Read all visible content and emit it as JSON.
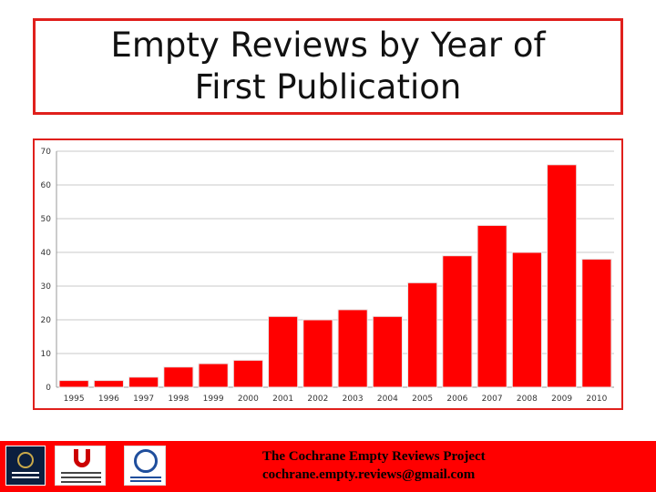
{
  "title": "Empty Reviews by Year of First Publication",
  "footer": {
    "project": "The Cochrane Empty Reviews Project",
    "email": "cochrane.empty.reviews@gmail.com"
  },
  "logos": [
    "oxford-logo",
    "university-of-utah-logo",
    "ctu-logo"
  ],
  "colors": {
    "bar": "#ff0000",
    "frame": "#e0201c",
    "footer": "#ff0000"
  },
  "chart_data": {
    "type": "bar",
    "categories": [
      "1995",
      "1996",
      "1997",
      "1998",
      "1999",
      "2000",
      "2001",
      "2002",
      "2003",
      "2004",
      "2005",
      "2006",
      "2007",
      "2008",
      "2009",
      "2010"
    ],
    "values": [
      2,
      2,
      3,
      6,
      7,
      8,
      21,
      20,
      23,
      21,
      31,
      39,
      48,
      40,
      66,
      38
    ],
    "ylim": [
      0,
      70
    ],
    "yticks": [
      0,
      10,
      20,
      30,
      40,
      50,
      60,
      70
    ],
    "grid": true,
    "legend": "none"
  }
}
